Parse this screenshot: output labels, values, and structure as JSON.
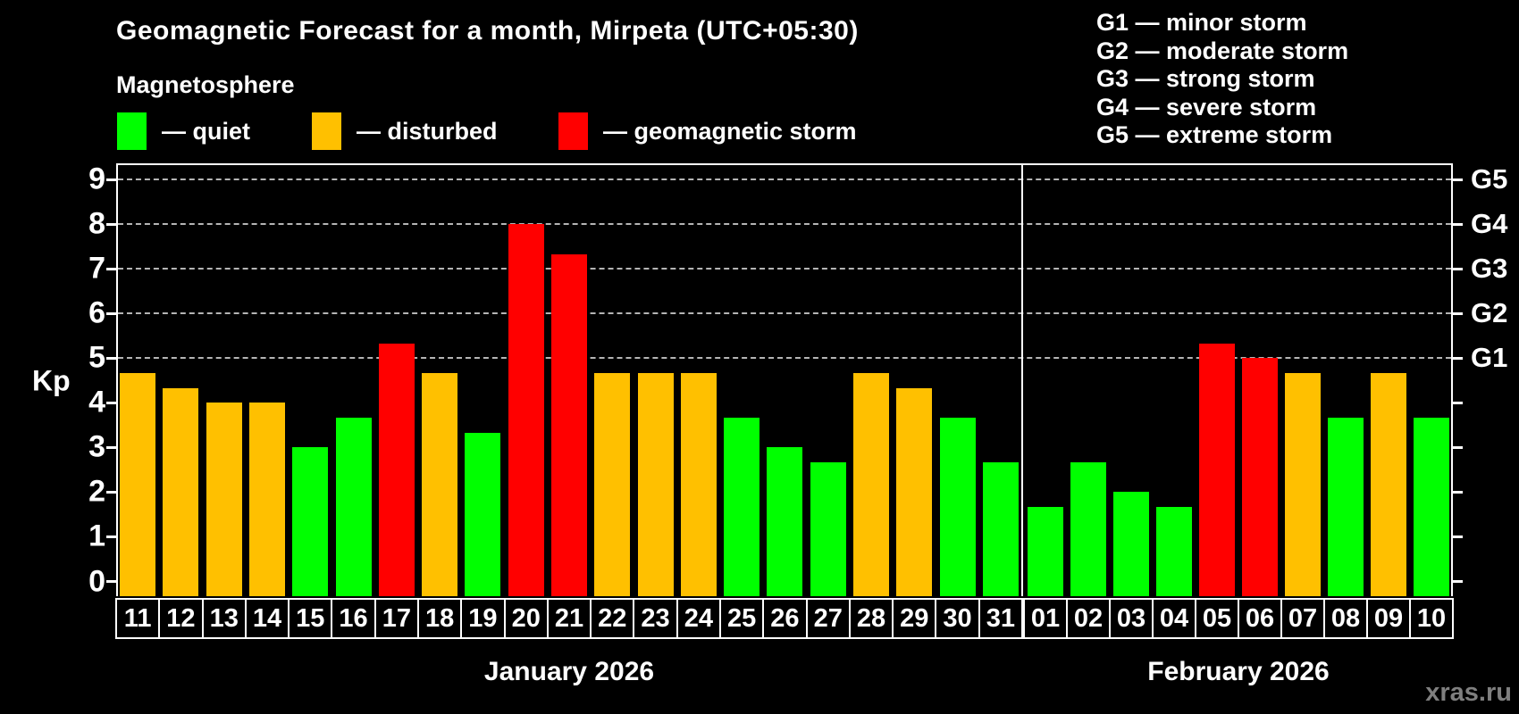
{
  "header": {
    "title": "Geomagnetic Forecast for a month, Mirpeta (UTC+05:30)"
  },
  "legend": {
    "title": "Magnetosphere",
    "items": [
      {
        "label": "— quiet",
        "condition": "quiet"
      },
      {
        "label": "— disturbed",
        "condition": "disturbed"
      },
      {
        "label": "— geomagnetic storm",
        "condition": "storm"
      }
    ]
  },
  "g_legend": [
    "G1 — minor storm",
    "G2 — moderate storm",
    "G3 — strong storm",
    "G4 — severe storm",
    "G5 — extreme storm"
  ],
  "axes": {
    "kp_label": "Kp",
    "y_ticks": [
      "0",
      "1",
      "2",
      "3",
      "4",
      "5",
      "6",
      "7",
      "8",
      "9"
    ],
    "g_levels": [
      {
        "code": "G1",
        "kp": 5
      },
      {
        "code": "G2",
        "kp": 6
      },
      {
        "code": "G3",
        "kp": 7
      },
      {
        "code": "G4",
        "kp": 8
      },
      {
        "code": "G5",
        "kp": 9
      }
    ]
  },
  "months": [
    {
      "label": "January 2026"
    },
    {
      "label": "February 2026"
    }
  ],
  "colors": {
    "quiet": "#00ff00",
    "disturbed": "#ffc000",
    "storm": "#ff0000",
    "axis": "#ffffff",
    "grid": "#b5b5b5",
    "background": "#000000",
    "watermark": "#7f7f7f"
  },
  "watermark": "xras.ru",
  "chart_data": {
    "type": "bar",
    "title": "Geomagnetic Forecast for a month, Mirpeta (UTC+05:30)",
    "xlabel": "",
    "ylabel": "Kp",
    "ylim": [
      0,
      9
    ],
    "y_gridlines_at": [
      5,
      6,
      7,
      8,
      9
    ],
    "legend_position": "top",
    "points": [
      {
        "month": 0,
        "day": "11",
        "kp": 4.67,
        "condition": "disturbed"
      },
      {
        "month": 0,
        "day": "12",
        "kp": 4.33,
        "condition": "disturbed"
      },
      {
        "month": 0,
        "day": "13",
        "kp": 4.0,
        "condition": "disturbed"
      },
      {
        "month": 0,
        "day": "14",
        "kp": 4.0,
        "condition": "disturbed"
      },
      {
        "month": 0,
        "day": "15",
        "kp": 3.0,
        "condition": "quiet"
      },
      {
        "month": 0,
        "day": "16",
        "kp": 3.67,
        "condition": "quiet"
      },
      {
        "month": 0,
        "day": "17",
        "kp": 5.33,
        "condition": "storm"
      },
      {
        "month": 0,
        "day": "18",
        "kp": 4.67,
        "condition": "disturbed"
      },
      {
        "month": 0,
        "day": "19",
        "kp": 3.33,
        "condition": "quiet"
      },
      {
        "month": 0,
        "day": "20",
        "kp": 8.0,
        "condition": "storm"
      },
      {
        "month": 0,
        "day": "21",
        "kp": 7.33,
        "condition": "storm"
      },
      {
        "month": 0,
        "day": "22",
        "kp": 4.67,
        "condition": "disturbed"
      },
      {
        "month": 0,
        "day": "23",
        "kp": 4.67,
        "condition": "disturbed"
      },
      {
        "month": 0,
        "day": "24",
        "kp": 4.67,
        "condition": "disturbed"
      },
      {
        "month": 0,
        "day": "25",
        "kp": 3.67,
        "condition": "quiet"
      },
      {
        "month": 0,
        "day": "26",
        "kp": 3.0,
        "condition": "quiet"
      },
      {
        "month": 0,
        "day": "27",
        "kp": 2.67,
        "condition": "quiet"
      },
      {
        "month": 0,
        "day": "28",
        "kp": 4.67,
        "condition": "disturbed"
      },
      {
        "month": 0,
        "day": "29",
        "kp": 4.33,
        "condition": "disturbed"
      },
      {
        "month": 0,
        "day": "30",
        "kp": 3.67,
        "condition": "quiet"
      },
      {
        "month": 0,
        "day": "31",
        "kp": 2.67,
        "condition": "quiet"
      },
      {
        "month": 1,
        "day": "01",
        "kp": 1.67,
        "condition": "quiet"
      },
      {
        "month": 1,
        "day": "02",
        "kp": 2.67,
        "condition": "quiet"
      },
      {
        "month": 1,
        "day": "03",
        "kp": 2.0,
        "condition": "quiet"
      },
      {
        "month": 1,
        "day": "04",
        "kp": 1.67,
        "condition": "quiet"
      },
      {
        "month": 1,
        "day": "05",
        "kp": 5.33,
        "condition": "storm"
      },
      {
        "month": 1,
        "day": "06",
        "kp": 5.0,
        "condition": "storm"
      },
      {
        "month": 1,
        "day": "07",
        "kp": 4.67,
        "condition": "disturbed"
      },
      {
        "month": 1,
        "day": "08",
        "kp": 3.67,
        "condition": "quiet"
      },
      {
        "month": 1,
        "day": "09",
        "kp": 4.67,
        "condition": "disturbed"
      },
      {
        "month": 1,
        "day": "10",
        "kp": 3.67,
        "condition": "quiet"
      }
    ]
  }
}
